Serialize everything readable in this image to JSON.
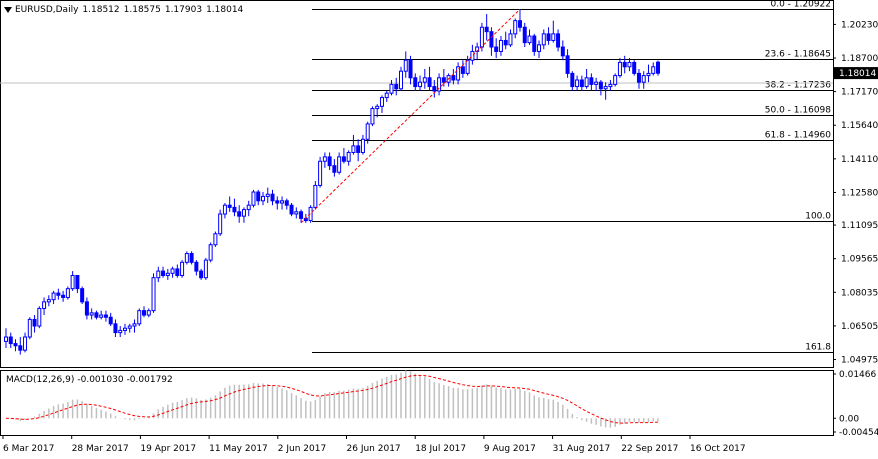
{
  "header": {
    "symbol": "EURUSD,Daily",
    "open": "1.18512",
    "high": "1.18575",
    "low": "1.17903",
    "close": "1.18014"
  },
  "macd": {
    "label": "MACD(12,26,9)",
    "main": "-0.001030",
    "signal": "-0.001792",
    "axis_labels": [
      "0.01466",
      "0.00",
      "-0.004545"
    ]
  },
  "price_axis": {
    "labels": [
      "1.20230",
      "1.18700",
      "1.17170",
      "1.15640",
      "1.14110",
      "1.12580",
      "1.11095",
      "1.09565",
      "1.08035",
      "1.06505",
      "1.04975"
    ],
    "current_price": "1.18014"
  },
  "time_axis": {
    "labels": [
      "6 Mar 2017",
      "28 Mar 2017",
      "19 Apr 2017",
      "11 May 2017",
      "2 Jun 2017",
      "26 Jun 2017",
      "18 Jul 2017",
      "9 Aug 2017",
      "31 Aug 2017",
      "22 Sep 2017",
      "16 Oct 2017"
    ]
  },
  "fibonacci": [
    {
      "label": "0.0 - 1.20922",
      "price": 1.20922
    },
    {
      "label": "23.6 - 1.18645",
      "price": 1.18645
    },
    {
      "label": "38.2 - 1.17236",
      "price": 1.17236
    },
    {
      "label": "50.0 - 1.16098",
      "price": 1.16098
    },
    {
      "label": "61.8 - 1.14960",
      "price": 1.1496
    },
    {
      "label": "100.0",
      "price": 1.11296
    },
    {
      "label": "161.8",
      "price": 1.0534
    }
  ],
  "colors": {
    "candle": "#0000ff",
    "fib_line": "#000000",
    "trendline": "#ff0000",
    "macd_hist": "#c0c0c0",
    "macd_signal": "#ff0000",
    "current_price_box": "#000000"
  },
  "chart_data": {
    "type": "candlestick",
    "title": "EURUSD,Daily",
    "ylim": [
      1.0468,
      1.2125
    ],
    "ohlc": [
      [
        1.058,
        1.064,
        1.055,
        1.06
      ],
      [
        1.06,
        1.062,
        1.055,
        1.057
      ],
      [
        1.057,
        1.059,
        1.0535,
        1.056
      ],
      [
        1.056,
        1.06,
        1.052,
        1.054
      ],
      [
        1.054,
        1.062,
        1.053,
        1.06
      ],
      [
        1.06,
        1.069,
        1.059,
        1.068
      ],
      [
        1.068,
        1.07,
        1.062,
        1.065
      ],
      [
        1.065,
        1.074,
        1.064,
        1.073
      ],
      [
        1.073,
        1.078,
        1.07,
        1.076
      ],
      [
        1.076,
        1.079,
        1.074,
        1.077
      ],
      [
        1.077,
        1.081,
        1.075,
        1.08
      ],
      [
        1.08,
        1.082,
        1.077,
        1.079
      ],
      [
        1.079,
        1.081,
        1.076,
        1.078
      ],
      [
        1.078,
        1.083,
        1.077,
        1.082
      ],
      [
        1.082,
        1.09,
        1.081,
        1.088
      ],
      [
        1.088,
        1.088,
        1.08,
        1.082
      ],
      [
        1.082,
        1.083,
        1.075,
        1.076
      ],
      [
        1.076,
        1.078,
        1.068,
        1.07
      ],
      [
        1.07,
        1.073,
        1.068,
        1.071
      ],
      [
        1.071,
        1.072,
        1.068,
        1.069
      ],
      [
        1.069,
        1.072,
        1.068,
        1.07
      ],
      [
        1.07,
        1.072,
        1.067,
        1.069
      ],
      [
        1.069,
        1.071,
        1.065,
        1.066
      ],
      [
        1.066,
        1.068,
        1.06,
        1.062
      ],
      [
        1.062,
        1.065,
        1.06,
        1.063
      ],
      [
        1.063,
        1.066,
        1.061,
        1.064
      ],
      [
        1.064,
        1.066,
        1.062,
        1.065
      ],
      [
        1.065,
        1.068,
        1.062,
        1.066
      ],
      [
        1.066,
        1.073,
        1.065,
        1.072
      ],
      [
        1.072,
        1.074,
        1.069,
        1.07
      ],
      [
        1.07,
        1.073,
        1.069,
        1.072
      ],
      [
        1.072,
        1.089,
        1.071,
        1.087
      ],
      [
        1.087,
        1.092,
        1.085,
        1.09
      ],
      [
        1.09,
        1.092,
        1.087,
        1.088
      ],
      [
        1.088,
        1.091,
        1.086,
        1.089
      ],
      [
        1.089,
        1.092,
        1.087,
        1.091
      ],
      [
        1.091,
        1.093,
        1.087,
        1.088
      ],
      [
        1.088,
        1.095,
        1.087,
        1.094
      ],
      [
        1.094,
        1.099,
        1.093,
        1.098
      ],
      [
        1.098,
        1.099,
        1.093,
        1.094
      ],
      [
        1.094,
        1.095,
        1.088,
        1.09
      ],
      [
        1.09,
        1.091,
        1.086,
        1.087
      ],
      [
        1.087,
        1.096,
        1.086,
        1.095
      ],
      [
        1.095,
        1.103,
        1.094,
        1.102
      ],
      [
        1.102,
        1.108,
        1.101,
        1.107
      ],
      [
        1.107,
        1.118,
        1.106,
        1.116
      ],
      [
        1.116,
        1.121,
        1.114,
        1.12
      ],
      [
        1.12,
        1.124,
        1.117,
        1.119
      ],
      [
        1.119,
        1.123,
        1.115,
        1.117
      ],
      [
        1.117,
        1.12,
        1.112,
        1.115
      ],
      [
        1.115,
        1.119,
        1.112,
        1.118
      ],
      [
        1.118,
        1.122,
        1.115,
        1.12
      ],
      [
        1.12,
        1.127,
        1.119,
        1.126
      ],
      [
        1.126,
        1.127,
        1.12,
        1.122
      ],
      [
        1.122,
        1.126,
        1.12,
        1.124
      ],
      [
        1.124,
        1.128,
        1.121,
        1.125
      ],
      [
        1.125,
        1.127,
        1.12,
        1.122
      ],
      [
        1.122,
        1.124,
        1.118,
        1.121
      ],
      [
        1.121,
        1.124,
        1.118,
        1.122
      ],
      [
        1.122,
        1.123,
        1.118,
        1.12
      ],
      [
        1.12,
        1.121,
        1.115,
        1.116
      ],
      [
        1.116,
        1.119,
        1.114,
        1.117
      ],
      [
        1.117,
        1.118,
        1.112,
        1.114
      ],
      [
        1.114,
        1.116,
        1.112,
        1.113
      ],
      [
        1.113,
        1.12,
        1.112,
        1.119
      ],
      [
        1.119,
        1.131,
        1.118,
        1.129
      ],
      [
        1.129,
        1.142,
        1.128,
        1.14
      ],
      [
        1.14,
        1.144,
        1.137,
        1.142
      ],
      [
        1.142,
        1.144,
        1.136,
        1.138
      ],
      [
        1.138,
        1.141,
        1.133,
        1.135
      ],
      [
        1.135,
        1.144,
        1.134,
        1.142
      ],
      [
        1.142,
        1.146,
        1.139,
        1.14
      ],
      [
        1.14,
        1.145,
        1.138,
        1.144
      ],
      [
        1.144,
        1.152,
        1.143,
        1.147
      ],
      [
        1.147,
        1.15,
        1.14,
        1.144
      ],
      [
        1.144,
        1.152,
        1.143,
        1.15
      ],
      [
        1.15,
        1.158,
        1.148,
        1.157
      ],
      [
        1.157,
        1.165,
        1.156,
        1.164
      ],
      [
        1.164,
        1.166,
        1.16,
        1.165
      ],
      [
        1.165,
        1.17,
        1.162,
        1.169
      ],
      [
        1.169,
        1.172,
        1.167,
        1.171
      ],
      [
        1.171,
        1.177,
        1.17,
        1.175
      ],
      [
        1.175,
        1.178,
        1.17,
        1.173
      ],
      [
        1.173,
        1.183,
        1.172,
        1.181
      ],
      [
        1.181,
        1.19,
        1.178,
        1.186
      ],
      [
        1.186,
        1.188,
        1.175,
        1.178
      ],
      [
        1.178,
        1.18,
        1.172,
        1.174
      ],
      [
        1.174,
        1.179,
        1.172,
        1.176
      ],
      [
        1.176,
        1.182,
        1.173,
        1.178
      ],
      [
        1.178,
        1.183,
        1.172,
        1.174
      ],
      [
        1.174,
        1.177,
        1.169,
        1.172
      ],
      [
        1.172,
        1.18,
        1.17,
        1.178
      ],
      [
        1.178,
        1.182,
        1.174,
        1.176
      ],
      [
        1.176,
        1.18,
        1.174,
        1.179
      ],
      [
        1.179,
        1.182,
        1.175,
        1.177
      ],
      [
        1.177,
        1.185,
        1.175,
        1.183
      ],
      [
        1.183,
        1.186,
        1.178,
        1.18
      ],
      [
        1.18,
        1.188,
        1.179,
        1.186
      ],
      [
        1.186,
        1.193,
        1.184,
        1.19
      ],
      [
        1.19,
        1.194,
        1.186,
        1.192
      ],
      [
        1.192,
        1.203,
        1.19,
        1.201
      ],
      [
        1.201,
        1.207,
        1.195,
        1.199
      ],
      [
        1.199,
        1.201,
        1.188,
        1.192
      ],
      [
        1.192,
        1.196,
        1.187,
        1.19
      ],
      [
        1.19,
        1.197,
        1.188,
        1.195
      ],
      [
        1.195,
        1.199,
        1.191,
        1.193
      ],
      [
        1.193,
        1.2,
        1.192,
        1.198
      ],
      [
        1.198,
        1.205,
        1.196,
        1.204
      ],
      [
        1.204,
        1.2092,
        1.199,
        1.201
      ],
      [
        1.201,
        1.203,
        1.192,
        1.194
      ],
      [
        1.194,
        1.2,
        1.193,
        1.197
      ],
      [
        1.197,
        1.198,
        1.188,
        1.19
      ],
      [
        1.19,
        1.195,
        1.187,
        1.193
      ],
      [
        1.193,
        1.2,
        1.191,
        1.198
      ],
      [
        1.198,
        1.201,
        1.193,
        1.195
      ],
      [
        1.195,
        1.204,
        1.194,
        1.198
      ],
      [
        1.198,
        1.2,
        1.19,
        1.192
      ],
      [
        1.192,
        1.195,
        1.186,
        1.188
      ],
      [
        1.188,
        1.191,
        1.178,
        1.18
      ],
      [
        1.18,
        1.181,
        1.172,
        1.174
      ],
      [
        1.174,
        1.179,
        1.172,
        1.177
      ],
      [
        1.177,
        1.179,
        1.172,
        1.174
      ],
      [
        1.174,
        1.182,
        1.173,
        1.178
      ],
      [
        1.178,
        1.18,
        1.172,
        1.175
      ],
      [
        1.175,
        1.178,
        1.172,
        1.176
      ],
      [
        1.176,
        1.177,
        1.17,
        1.173
      ],
      [
        1.173,
        1.176,
        1.168,
        1.174
      ],
      [
        1.174,
        1.177,
        1.172,
        1.175
      ],
      [
        1.175,
        1.18,
        1.174,
        1.179
      ],
      [
        1.179,
        1.187,
        1.178,
        1.185
      ],
      [
        1.185,
        1.188,
        1.18,
        1.183
      ],
      [
        1.183,
        1.187,
        1.181,
        1.185
      ],
      [
        1.185,
        1.186,
        1.179,
        1.18
      ],
      [
        1.18,
        1.182,
        1.173,
        1.176
      ],
      [
        1.176,
        1.181,
        1.173,
        1.179
      ],
      [
        1.179,
        1.184,
        1.176,
        1.18
      ],
      [
        1.18,
        1.185,
        1.179,
        1.183
      ],
      [
        1.1851,
        1.1858,
        1.179,
        1.1801
      ]
    ],
    "macd": {
      "label": "MACD(12,26,9)",
      "main": -0.00103,
      "signal": -0.001792
    }
  }
}
